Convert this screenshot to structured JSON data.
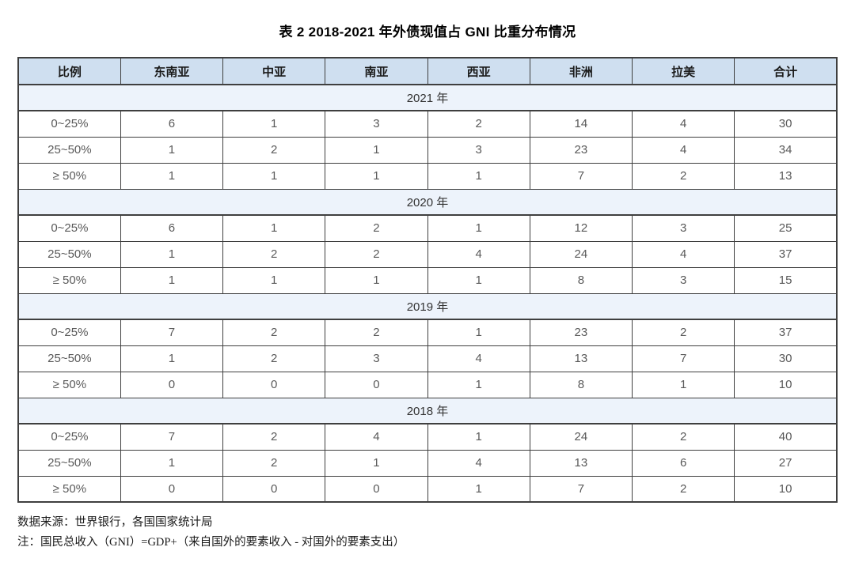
{
  "title": "表 2  2018-2021 年外债现值占 GNI 比重分布情况",
  "table": {
    "columns": [
      "比例",
      "东南亚",
      "中亚",
      "南亚",
      "西亚",
      "非洲",
      "拉美",
      "合计"
    ],
    "sections": [
      {
        "year": "2021 年",
        "rows": [
          {
            "label": "0~25%",
            "values": [
              6,
              1,
              3,
              2,
              14,
              4,
              30
            ]
          },
          {
            "label": "25~50%",
            "values": [
              1,
              2,
              1,
              3,
              23,
              4,
              34
            ]
          },
          {
            "label": "≥ 50%",
            "values": [
              1,
              1,
              1,
              1,
              7,
              2,
              13
            ]
          }
        ]
      },
      {
        "year": "2020 年",
        "rows": [
          {
            "label": "0~25%",
            "values": [
              6,
              1,
              2,
              1,
              12,
              3,
              25
            ]
          },
          {
            "label": "25~50%",
            "values": [
              1,
              2,
              2,
              4,
              24,
              4,
              37
            ]
          },
          {
            "label": "≥ 50%",
            "values": [
              1,
              1,
              1,
              1,
              8,
              3,
              15
            ]
          }
        ]
      },
      {
        "year": "2019 年",
        "rows": [
          {
            "label": "0~25%",
            "values": [
              7,
              2,
              2,
              1,
              23,
              2,
              37
            ]
          },
          {
            "label": "25~50%",
            "values": [
              1,
              2,
              3,
              4,
              13,
              7,
              30
            ]
          },
          {
            "label": "≥ 50%",
            "values": [
              0,
              0,
              0,
              1,
              8,
              1,
              10
            ]
          }
        ]
      },
      {
        "year": "2018 年",
        "rows": [
          {
            "label": "0~25%",
            "values": [
              7,
              2,
              4,
              1,
              24,
              2,
              40
            ]
          },
          {
            "label": "25~50%",
            "values": [
              1,
              2,
              1,
              4,
              13,
              6,
              27
            ]
          },
          {
            "label": "≥ 50%",
            "values": [
              0,
              0,
              0,
              1,
              7,
              2,
              10
            ]
          }
        ]
      }
    ]
  },
  "footnotes": {
    "source": "数据来源：世界银行，各国国家统计局",
    "note": "注：国民总收入（GNI）=GDP+（来自国外的要素收入 - 对国外的要素支出）"
  },
  "colors": {
    "header_bg": "#cfdff0",
    "year_bg": "#edf3fb",
    "border": "#3f3f3f",
    "header_text": "#1a1a1a",
    "data_text": "#595959"
  }
}
